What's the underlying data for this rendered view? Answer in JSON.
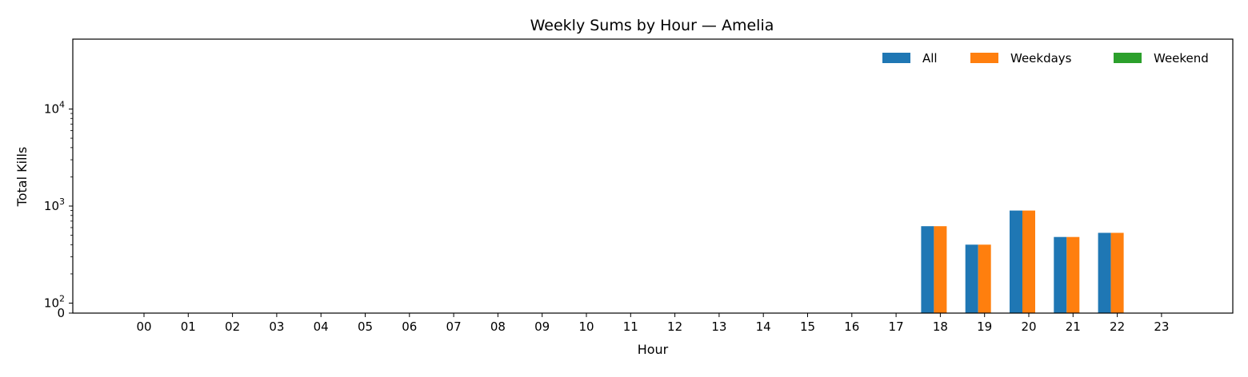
{
  "chart_data": {
    "type": "bar",
    "title": "Weekly Sums by Hour — Amelia",
    "xlabel": "Hour",
    "ylabel": "Total Kills",
    "yscale": "symlog",
    "ylim": [
      0,
      50000
    ],
    "yticks": [
      {
        "value": 0,
        "base": "0",
        "exp": ""
      },
      {
        "value": 100,
        "base": "10",
        "exp": "2"
      },
      {
        "value": 1000,
        "base": "10",
        "exp": "3"
      },
      {
        "value": 10000,
        "base": "10",
        "exp": "4"
      }
    ],
    "grid": false,
    "legend_position": "top-right",
    "categories": [
      "00",
      "01",
      "02",
      "03",
      "04",
      "05",
      "06",
      "07",
      "08",
      "09",
      "10",
      "11",
      "12",
      "13",
      "14",
      "15",
      "16",
      "17",
      "18",
      "19",
      "20",
      "21",
      "22",
      "23"
    ],
    "series": [
      {
        "name": "All",
        "color": "#1f77b4",
        "values": [
          0,
          0,
          0,
          0,
          0,
          0,
          0,
          0,
          0,
          0,
          0,
          0,
          0,
          0,
          0,
          0,
          0,
          0,
          620,
          400,
          900,
          480,
          530,
          0
        ]
      },
      {
        "name": "Weekdays",
        "color": "#ff7f0e",
        "values": [
          0,
          0,
          0,
          0,
          0,
          0,
          0,
          0,
          0,
          0,
          0,
          0,
          0,
          0,
          0,
          0,
          0,
          0,
          620,
          400,
          900,
          480,
          530,
          0
        ]
      },
      {
        "name": "Weekend",
        "color": "#2ca02c",
        "values": [
          0,
          0,
          0,
          0,
          0,
          0,
          0,
          0,
          0,
          0,
          0,
          0,
          0,
          0,
          0,
          0,
          0,
          0,
          0,
          0,
          0,
          0,
          0,
          0
        ]
      }
    ]
  }
}
